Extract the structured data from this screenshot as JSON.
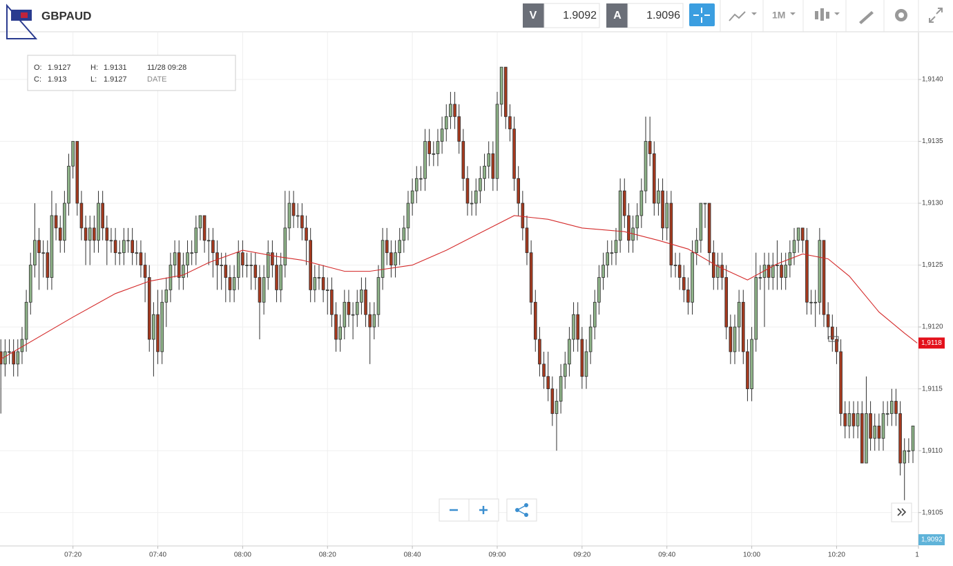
{
  "header": {
    "symbol": "GBPAUD",
    "bid_label": "V",
    "bid": "1.9092",
    "ask_label": "A",
    "ask": "1.9096",
    "timeframe": "1M"
  },
  "ohlc_box": {
    "o_label": "O:",
    "o": "1.9127",
    "h_label": "H:",
    "h": "1.9131",
    "date": "11/28 09:28",
    "c_label": "C:",
    "c": "1.913",
    "l_label": "L:",
    "l": "1.9127",
    "date_label": "DATE"
  },
  "chart_data": {
    "type": "candlestick",
    "up_color": "#8fb489",
    "down_color": "#a63a1f",
    "edge_color": "#2e2e2e",
    "grid": true,
    "xlim": [
      422.8,
      639.3
    ],
    "ylim": [
      1.91023,
      1.91438
    ],
    "xticks": [
      {
        "value": 440,
        "label": "07:20"
      },
      {
        "value": 460,
        "label": "07:40"
      },
      {
        "value": 480,
        "label": "08:00"
      },
      {
        "value": 500,
        "label": "08:20"
      },
      {
        "value": 520,
        "label": "08:40"
      },
      {
        "value": 540,
        "label": "09:00"
      },
      {
        "value": 560,
        "label": "09:20"
      },
      {
        "value": 580,
        "label": "09:40"
      },
      {
        "value": 600,
        "label": "10:00"
      },
      {
        "value": 620,
        "label": "10:20"
      },
      {
        "value": 640,
        "label": "1"
      }
    ],
    "yticks": [
      {
        "value": 1.9105,
        "label": "1,9105"
      },
      {
        "value": 1.911,
        "label": "1,9110"
      },
      {
        "value": 1.9115,
        "label": "1,9115"
      },
      {
        "value": 1.912,
        "label": "1,9120"
      },
      {
        "value": 1.9125,
        "label": "1,9125"
      },
      {
        "value": 1.913,
        "label": "1,9130"
      },
      {
        "value": 1.9135,
        "label": "1,9135"
      },
      {
        "value": 1.914,
        "label": "1,9140"
      }
    ],
    "x": [
      423,
      424,
      425,
      426,
      427,
      428,
      429,
      430,
      431,
      432,
      433,
      434,
      435,
      436,
      437,
      438,
      439,
      440,
      441,
      442,
      443,
      444,
      445,
      446,
      447,
      448,
      449,
      450,
      451,
      452,
      453,
      454,
      455,
      456,
      457,
      458,
      459,
      460,
      461,
      462,
      463,
      464,
      465,
      466,
      467,
      468,
      469,
      470,
      471,
      472,
      473,
      474,
      475,
      476,
      477,
      478,
      479,
      480,
      481,
      482,
      483,
      484,
      485,
      486,
      487,
      488,
      489,
      490,
      491,
      492,
      493,
      494,
      495,
      496,
      497,
      498,
      499,
      500,
      501,
      502,
      503,
      504,
      505,
      506,
      507,
      508,
      509,
      510,
      511,
      512,
      513,
      514,
      515,
      516,
      517,
      518,
      519,
      520,
      521,
      522,
      523,
      524,
      525,
      526,
      527,
      528,
      529,
      530,
      531,
      532,
      533,
      534,
      535,
      536,
      537,
      538,
      539,
      540,
      541,
      542,
      543,
      544,
      545,
      546,
      547,
      548,
      549,
      550,
      551,
      552,
      553,
      554,
      555,
      556,
      557,
      558,
      559,
      560,
      561,
      562,
      563,
      564,
      565,
      566,
      567,
      568,
      569,
      570,
      571,
      572,
      573,
      574,
      575,
      576,
      577,
      578,
      579,
      580,
      581,
      582,
      583,
      584,
      585,
      586,
      587,
      588,
      589,
      590,
      591,
      592,
      593,
      594,
      595,
      596,
      597,
      598,
      599,
      600,
      601,
      602,
      603,
      604,
      605,
      606,
      607,
      608,
      609,
      610,
      611,
      612,
      613,
      614,
      615,
      616,
      617,
      618,
      619,
      620,
      621,
      622,
      623,
      624,
      625,
      626,
      627,
      628,
      629,
      630,
      631,
      632,
      633,
      634,
      635,
      636,
      637,
      638
    ],
    "open": [
      1.9118,
      1.9117,
      1.9118,
      1.9118,
      1.9117,
      1.9118,
      1.9119,
      1.9122,
      1.9125,
      1.9127,
      1.9126,
      1.9126,
      1.9124,
      1.9129,
      1.9128,
      1.9127,
      1.913,
      1.9133,
      1.9135,
      1.913,
      1.9128,
      1.9127,
      1.9128,
      1.9127,
      1.913,
      1.9128,
      1.9127,
      1.9127,
      1.9126,
      1.9126,
      1.9127,
      1.9127,
      1.9126,
      1.9126,
      1.9125,
      1.9124,
      1.9119,
      1.9121,
      1.9118,
      1.9122,
      1.9123,
      1.9125,
      1.9126,
      1.9124,
      1.9125,
      1.9126,
      1.9126,
      1.9128,
      1.9129,
      1.9127,
      1.9127,
      1.9126,
      1.9125,
      1.9125,
      1.9124,
      1.9123,
      1.9124,
      1.9126,
      1.9125,
      1.9125,
      1.9125,
      1.9124,
      1.9122,
      1.9124,
      1.9126,
      1.9125,
      1.9123,
      1.9125,
      1.9128,
      1.913,
      1.9129,
      1.9129,
      1.9128,
      1.9127,
      1.9123,
      1.9124,
      1.9124,
      1.9123,
      1.9123,
      1.9121,
      1.9119,
      1.912,
      1.9122,
      1.9121,
      1.9121,
      1.9122,
      1.9123,
      1.9121,
      1.912,
      1.9121,
      1.9124,
      1.9127,
      1.9126,
      1.9125,
      1.9126,
      1.9127,
      1.9128,
      1.913,
      1.9131,
      1.9132,
      1.9132,
      1.9135,
      1.9134,
      1.9134,
      1.9135,
      1.9136,
      1.9137,
      1.9138,
      1.9137,
      1.9135,
      1.9132,
      1.913,
      1.913,
      1.9131,
      1.9132,
      1.9133,
      1.9134,
      1.9132,
      1.9138,
      1.9141,
      1.9137,
      1.9136,
      1.9132,
      1.913,
      1.9128,
      1.9126,
      1.9122,
      1.9119,
      1.9117,
      1.9116,
      1.9115,
      1.9113,
      1.9114,
      1.9116,
      1.9117,
      1.9119,
      1.9121,
      1.9119,
      1.9116,
      1.9118,
      1.912,
      1.9122,
      1.9124,
      1.9125,
      1.9126,
      1.9126,
      1.9127,
      1.9131,
      1.9129,
      1.9127,
      1.9128,
      1.9129,
      1.9131,
      1.9135,
      1.9134,
      1.913,
      1.9131,
      1.9128,
      1.913,
      1.9125,
      1.9125,
      1.9124,
      1.9123,
      1.9122,
      1.9126,
      1.9127,
      1.913,
      1.913,
      1.9126,
      1.9124,
      1.9125,
      1.9124,
      1.912,
      1.9118,
      1.912,
      1.9122,
      1.9118,
      1.9115,
      1.9119,
      1.9124,
      1.9124,
      1.9125,
      1.9124,
      1.9125,
      1.9125,
      1.9124,
      1.9125,
      1.9126,
      1.9127,
      1.9128,
      1.9127,
      1.9122,
      1.9122,
      1.9122,
      1.9127,
      1.9121,
      1.912,
      1.9119,
      1.9118,
      1.9113,
      1.9112,
      1.9113,
      1.9112,
      1.9113,
      1.9109,
      1.9113,
      1.9111,
      1.9112,
      1.9111,
      1.9113,
      1.9113,
      1.9114,
      1.9113,
      1.9109,
      1.911,
      1.911
    ],
    "high": [
      1.9119,
      1.9119,
      1.9119,
      1.9119,
      1.9119,
      1.912,
      1.9123,
      1.9126,
      1.913,
      1.9128,
      1.9127,
      1.9127,
      1.9131,
      1.913,
      1.9129,
      1.9131,
      1.9134,
      1.9135,
      1.9135,
      1.9131,
      1.9129,
      1.9129,
      1.9129,
      1.9131,
      1.9131,
      1.9129,
      1.9128,
      1.9128,
      1.9127,
      1.9128,
      1.9128,
      1.9128,
      1.9127,
      1.9127,
      1.9126,
      1.9125,
      1.9122,
      1.9123,
      1.9123,
      1.9124,
      1.9126,
      1.9127,
      1.9127,
      1.9126,
      1.9127,
      1.9127,
      1.9129,
      1.9129,
      1.9129,
      1.9128,
      1.9128,
      1.9127,
      1.9126,
      1.9126,
      1.9125,
      1.9125,
      1.9127,
      1.9127,
      1.9126,
      1.9126,
      1.9126,
      1.9125,
      1.9125,
      1.9127,
      1.9127,
      1.9126,
      1.9126,
      1.9131,
      1.9131,
      1.9131,
      1.913,
      1.913,
      1.9129,
      1.9128,
      1.9125,
      1.9125,
      1.9125,
      1.9124,
      1.9124,
      1.9122,
      1.9121,
      1.9123,
      1.9123,
      1.9122,
      1.9123,
      1.9124,
      1.9124,
      1.9122,
      1.9122,
      1.9125,
      1.9128,
      1.9128,
      1.9127,
      1.9127,
      1.9128,
      1.9129,
      1.9131,
      1.9132,
      1.9133,
      1.9133,
      1.9136,
      1.9136,
      1.9135,
      1.9136,
      1.9137,
      1.9138,
      1.9139,
      1.9139,
      1.9138,
      1.9136,
      1.9133,
      1.9131,
      1.9132,
      1.9133,
      1.9134,
      1.9135,
      1.9135,
      1.9139,
      1.9141,
      1.9141,
      1.9138,
      1.9137,
      1.9133,
      1.9131,
      1.9129,
      1.9127,
      1.9123,
      1.912,
      1.9118,
      1.9118,
      1.9116,
      1.9115,
      1.9117,
      1.9118,
      1.912,
      1.9122,
      1.9122,
      1.912,
      1.9119,
      1.9121,
      1.9123,
      1.9125,
      1.9126,
      1.9127,
      1.9127,
      1.9128,
      1.9132,
      1.9132,
      1.913,
      1.9129,
      1.913,
      1.9132,
      1.9137,
      1.9137,
      1.9135,
      1.9132,
      1.9132,
      1.9131,
      1.9131,
      1.9126,
      1.9126,
      1.9125,
      1.9124,
      1.9127,
      1.9128,
      1.913,
      1.913,
      1.913,
      1.9127,
      1.9126,
      1.9126,
      1.9125,
      1.9121,
      1.9121,
      1.9123,
      1.9123,
      1.9119,
      1.912,
      1.9126,
      1.9125,
      1.9126,
      1.9126,
      1.9126,
      1.9127,
      1.9126,
      1.9126,
      1.9127,
      1.9128,
      1.9128,
      1.9128,
      1.9128,
      1.9123,
      1.9123,
      1.9128,
      1.9127,
      1.9122,
      1.9121,
      1.912,
      1.9119,
      1.9114,
      1.9114,
      1.9114,
      1.9114,
      1.9114,
      1.9116,
      1.9114,
      1.9113,
      1.9113,
      1.9114,
      1.9114,
      1.9115,
      1.9115,
      1.9114,
      1.9111,
      1.9111,
      1.9112
    ],
    "low": [
      1.9113,
      1.9116,
      1.9117,
      1.9116,
      1.9116,
      1.9117,
      1.9118,
      1.9121,
      1.9124,
      1.9123,
      1.9124,
      1.9123,
      1.9123,
      1.9127,
      1.9126,
      1.9126,
      1.9129,
      1.9132,
      1.9129,
      1.9127,
      1.9125,
      1.9125,
      1.9126,
      1.9126,
      1.9127,
      1.9125,
      1.9126,
      1.9125,
      1.9125,
      1.9125,
      1.9126,
      1.9125,
      1.9125,
      1.9124,
      1.9122,
      1.9118,
      1.9116,
      1.9117,
      1.9117,
      1.912,
      1.9122,
      1.9124,
      1.9123,
      1.9123,
      1.9124,
      1.9125,
      1.9125,
      1.9127,
      1.9126,
      1.9125,
      1.9124,
      1.9123,
      1.9123,
      1.9122,
      1.9122,
      1.9122,
      1.9123,
      1.9124,
      1.9124,
      1.9123,
      1.9123,
      1.9119,
      1.9121,
      1.9123,
      1.9124,
      1.9122,
      1.9122,
      1.9124,
      1.9127,
      1.9128,
      1.9128,
      1.9127,
      1.9125,
      1.9122,
      1.9122,
      1.9123,
      1.9122,
      1.9121,
      1.912,
      1.9118,
      1.9118,
      1.9119,
      1.912,
      1.9119,
      1.912,
      1.9121,
      1.912,
      1.9117,
      1.9119,
      1.912,
      1.9123,
      1.9125,
      1.9124,
      1.9124,
      1.9125,
      1.9126,
      1.9127,
      1.9129,
      1.913,
      1.9131,
      1.9131,
      1.9133,
      1.9133,
      1.9133,
      1.9134,
      1.9135,
      1.9136,
      1.9136,
      1.9134,
      1.9131,
      1.9129,
      1.9129,
      1.9129,
      1.913,
      1.9131,
      1.9132,
      1.9131,
      1.9131,
      1.9137,
      1.9136,
      1.9135,
      1.9131,
      1.9129,
      1.9127,
      1.9125,
      1.9121,
      1.9118,
      1.9116,
      1.9115,
      1.9114,
      1.9112,
      1.911,
      1.9113,
      1.9115,
      1.9116,
      1.9118,
      1.9118,
      1.9115,
      1.9115,
      1.9117,
      1.9119,
      1.9121,
      1.9123,
      1.9124,
      1.9125,
      1.9125,
      1.9126,
      1.9128,
      1.9126,
      1.9126,
      1.9127,
      1.9128,
      1.913,
      1.9133,
      1.9129,
      1.9129,
      1.9127,
      1.9127,
      1.9124,
      1.9124,
      1.9123,
      1.9122,
      1.9121,
      1.9121,
      1.9125,
      1.9126,
      1.9128,
      1.9125,
      1.9123,
      1.9123,
      1.9123,
      1.9119,
      1.9117,
      1.9117,
      1.9118,
      1.9117,
      1.9114,
      1.9114,
      1.9118,
      1.9123,
      1.912,
      1.9123,
      1.9123,
      1.9123,
      1.9123,
      1.9123,
      1.9124,
      1.9125,
      1.9126,
      1.9126,
      1.9121,
      1.9121,
      1.912,
      1.9121,
      1.912,
      1.9119,
      1.9118,
      1.9117,
      1.9112,
      1.9111,
      1.9111,
      1.9111,
      1.9111,
      1.9109,
      1.9109,
      1.911,
      1.911,
      1.911,
      1.911,
      1.9112,
      1.9112,
      1.9112,
      1.9108,
      1.9106,
      1.9109,
      1.9109
    ],
    "close": [
      1.9117,
      1.9118,
      1.9118,
      1.9117,
      1.9118,
      1.9119,
      1.9122,
      1.9125,
      1.9127,
      1.9126,
      1.9126,
      1.9124,
      1.9129,
      1.9128,
      1.9127,
      1.913,
      1.9133,
      1.9135,
      1.913,
      1.9128,
      1.9127,
      1.9128,
      1.9127,
      1.913,
      1.9128,
      1.9127,
      1.9127,
      1.9126,
      1.9126,
      1.9127,
      1.9127,
      1.9126,
      1.9126,
      1.9125,
      1.9124,
      1.9119,
      1.9121,
      1.9118,
      1.9122,
      1.9123,
      1.9125,
      1.9126,
      1.9124,
      1.9125,
      1.9126,
      1.9126,
      1.9128,
      1.9129,
      1.9127,
      1.9127,
      1.9126,
      1.9125,
      1.9125,
      1.9124,
      1.9123,
      1.9124,
      1.9126,
      1.9125,
      1.9125,
      1.9125,
      1.9124,
      1.9122,
      1.9124,
      1.9126,
      1.9125,
      1.9123,
      1.9125,
      1.9128,
      1.913,
      1.9129,
      1.9129,
      1.9128,
      1.9127,
      1.9123,
      1.9124,
      1.9124,
      1.9123,
      1.9123,
      1.9121,
      1.9119,
      1.912,
      1.9122,
      1.9121,
      1.9121,
      1.9122,
      1.9123,
      1.9121,
      1.912,
      1.9121,
      1.9124,
      1.9127,
      1.9126,
      1.9125,
      1.9126,
      1.9127,
      1.9128,
      1.913,
      1.9131,
      1.9132,
      1.9132,
      1.9135,
      1.9134,
      1.9134,
      1.9135,
      1.9136,
      1.9137,
      1.9138,
      1.9137,
      1.9135,
      1.9132,
      1.913,
      1.913,
      1.9131,
      1.9132,
      1.9133,
      1.9134,
      1.9132,
      1.9138,
      1.9141,
      1.9137,
      1.9136,
      1.9132,
      1.913,
      1.9128,
      1.9126,
      1.9122,
      1.9119,
      1.9117,
      1.9116,
      1.9115,
      1.9113,
      1.9114,
      1.9116,
      1.9117,
      1.9119,
      1.9121,
      1.9119,
      1.9116,
      1.9118,
      1.912,
      1.9122,
      1.9124,
      1.9125,
      1.9126,
      1.9126,
      1.9127,
      1.9131,
      1.9129,
      1.9127,
      1.9128,
      1.9129,
      1.9131,
      1.9135,
      1.9134,
      1.913,
      1.9131,
      1.9128,
      1.913,
      1.9125,
      1.9125,
      1.9124,
      1.9123,
      1.9122,
      1.9126,
      1.9127,
      1.913,
      1.913,
      1.9126,
      1.9124,
      1.9125,
      1.9124,
      1.912,
      1.9118,
      1.912,
      1.9122,
      1.9118,
      1.9115,
      1.9119,
      1.9124,
      1.9124,
      1.9125,
      1.9124,
      1.9125,
      1.9125,
      1.9124,
      1.9125,
      1.9126,
      1.9127,
      1.9128,
      1.9127,
      1.9122,
      1.9122,
      1.9122,
      1.9127,
      1.9121,
      1.912,
      1.9119,
      1.9118,
      1.9113,
      1.9112,
      1.9113,
      1.9112,
      1.9113,
      1.9109,
      1.9113,
      1.9111,
      1.9112,
      1.9111,
      1.9113,
      1.9113,
      1.9114,
      1.9113,
      1.9109,
      1.911,
      1.911,
      1.9112
    ],
    "ma": {
      "color": "#d42a2a",
      "x": [
        423,
        440,
        450,
        458,
        466,
        472,
        480,
        488,
        494,
        504,
        510,
        520,
        528,
        536,
        544,
        552,
        560,
        570,
        578,
        585,
        592,
        599,
        606,
        612,
        618,
        623,
        630,
        636,
        639
      ],
      "values": [
        1.91174,
        1.91208,
        1.91227,
        1.91237,
        1.91242,
        1.91252,
        1.91262,
        1.91257,
        1.91254,
        1.91245,
        1.91245,
        1.9125,
        1.91262,
        1.91276,
        1.9129,
        1.91287,
        1.9128,
        1.91277,
        1.9127,
        1.91263,
        1.91249,
        1.91238,
        1.91251,
        1.91259,
        1.91255,
        1.91241,
        1.91212,
        1.91195,
        1.91187
      ],
      "label": "1,9118",
      "label_color": "#e3101a"
    },
    "bid_tag": {
      "label": "1,9092",
      "color": "#5fb3d9"
    }
  }
}
